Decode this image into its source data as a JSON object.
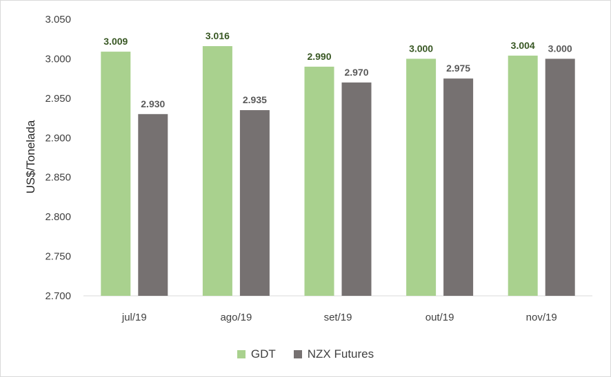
{
  "chart_data": {
    "type": "bar",
    "categories": [
      "jul/19",
      "ago/19",
      "set/19",
      "out/19",
      "nov/19"
    ],
    "series": [
      {
        "name": "GDT",
        "values": [
          3009,
          3016,
          2990,
          3000,
          3004
        ],
        "labels": [
          "3.009",
          "3.016",
          "2.990",
          "3.000",
          "3.004"
        ],
        "color": "#a9d18e",
        "label_color": "#385723"
      },
      {
        "name": "NZX Futures",
        "values": [
          2930,
          2935,
          2970,
          2975,
          3000
        ],
        "labels": [
          "2.930",
          "2.935",
          "2.970",
          "2.975",
          "3.000"
        ],
        "color": "#767171",
        "label_color": "#595959"
      }
    ],
    "ylabel": "US$/Tonelada",
    "ylim": [
      2700,
      3050
    ],
    "yticks": [
      2700,
      2750,
      2800,
      2850,
      2900,
      2950,
      3000,
      3050
    ],
    "ytick_labels": [
      "2.700",
      "2.750",
      "2.800",
      "2.850",
      "2.900",
      "2.950",
      "3.000",
      "3.050"
    ],
    "grid": false,
    "legend_position": "bottom"
  }
}
